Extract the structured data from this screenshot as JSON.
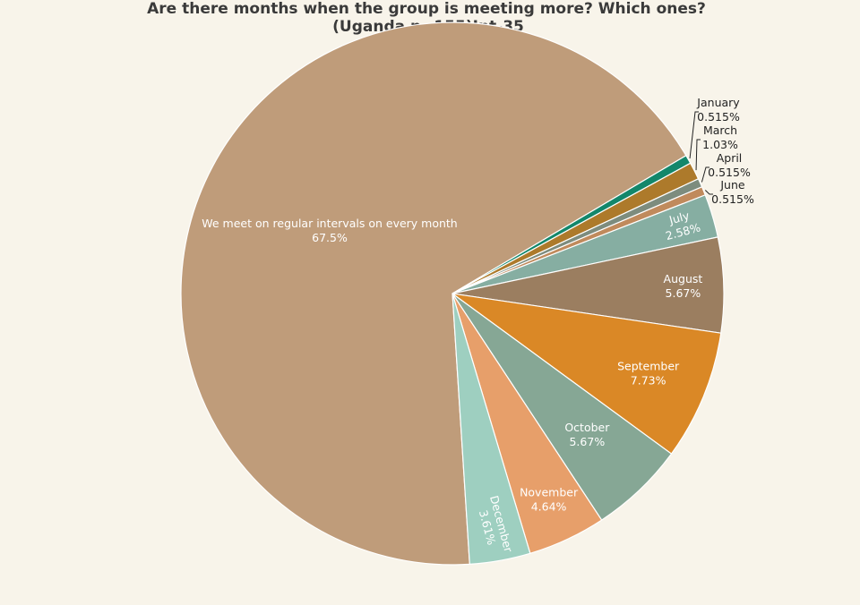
{
  "chart_data": {
    "type": "pie",
    "title_line1": "Are there months when the group is meeting more? Which ones?",
    "title_line2": "(Uganda n=155)Int-35",
    "slices": [
      {
        "label": "We meet on regular intervals on every month",
        "pct_text": "67.5%",
        "value": 67.5,
        "color": "#bf9c7a"
      },
      {
        "label": "January",
        "pct_text": "0.515%",
        "value": 0.515,
        "color": "#13876b"
      },
      {
        "label": "March",
        "pct_text": "1.03%",
        "value": 1.03,
        "color": "#ad7a2b"
      },
      {
        "label": "April",
        "pct_text": "0.515%",
        "value": 0.515,
        "color": "#7d8c7e"
      },
      {
        "label": "June",
        "pct_text": "0.515%",
        "value": 0.515,
        "color": "#c08a5c"
      },
      {
        "label": "July",
        "pct_text": "2.58%",
        "value": 2.58,
        "color": "#86aea2"
      },
      {
        "label": "August",
        "pct_text": "5.67%",
        "value": 5.67,
        "color": "#9b7e60"
      },
      {
        "label": "September",
        "pct_text": "7.73%",
        "value": 7.73,
        "color": "#da8826"
      },
      {
        "label": "October",
        "pct_text": "5.67%",
        "value": 5.67,
        "color": "#86a795"
      },
      {
        "label": "November",
        "pct_text": "4.64%",
        "value": 4.64,
        "color": "#e79f6a"
      },
      {
        "label": "December",
        "pct_text": "3.61%",
        "value": 3.61,
        "color": "#9ecfc0"
      }
    ]
  }
}
